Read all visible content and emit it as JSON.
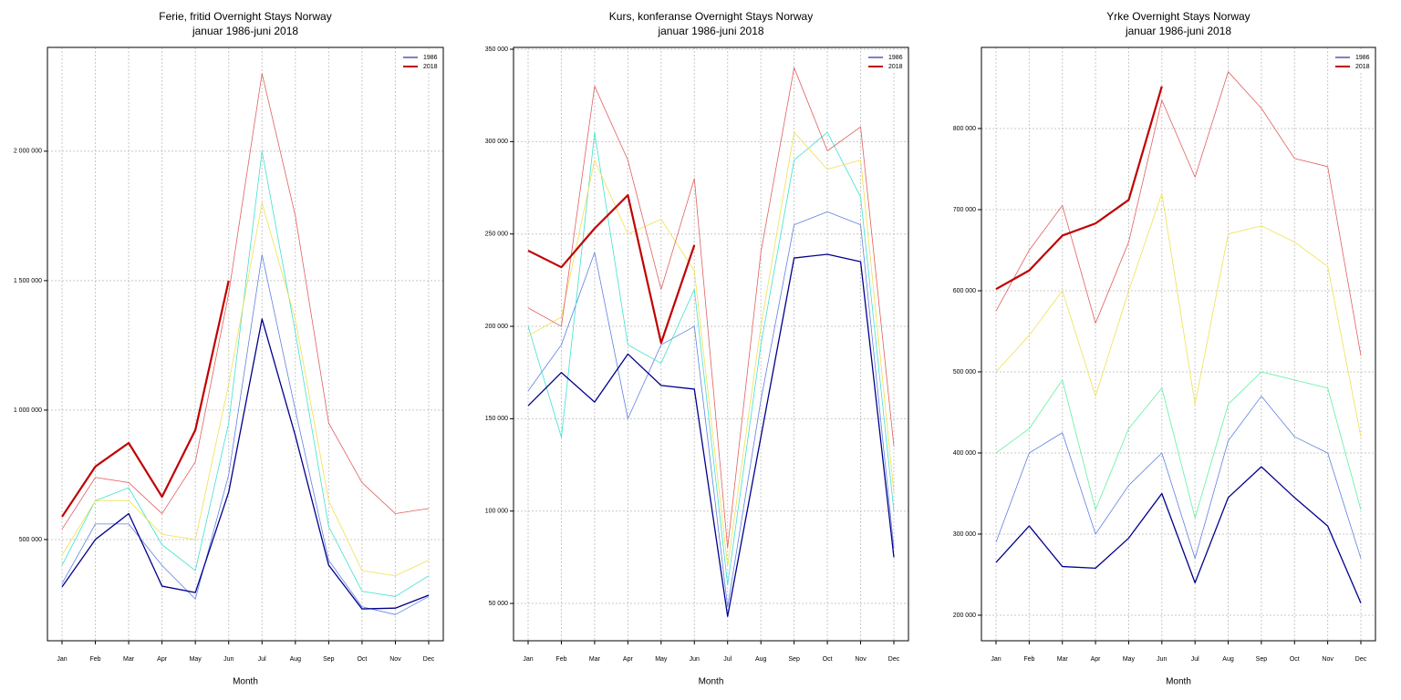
{
  "chart_data": [
    {
      "type": "line",
      "title": "Ferie, fritid Overnight Stays Norway",
      "subtitle": "januar 1986-juni 2018",
      "xlabel": "Month",
      "categories": [
        "Jan",
        "Feb",
        "Mar",
        "Apr",
        "May",
        "Jun",
        "Jul",
        "Aug",
        "Sep",
        "Oct",
        "Nov",
        "Dec"
      ],
      "ylim": [
        109000,
        2401000
      ],
      "yticks": [
        {
          "value": 500000,
          "label": "500 000"
        },
        {
          "value": 1000000,
          "label": "1 000 000"
        },
        {
          "value": 1500000,
          "label": "1 500 000"
        },
        {
          "value": 2000000,
          "label": "2 000 000"
        }
      ],
      "grid": true,
      "legend": "top-right",
      "series": [
        {
          "color": "#6080e0",
          "values": [
            330000,
            560000,
            560000,
            400000,
            270000,
            750000,
            1600000,
            1000000,
            420000,
            240000,
            210000,
            280000
          ]
        },
        {
          "color": "#40e0d0",
          "values": [
            400000,
            650000,
            700000,
            480000,
            380000,
            950000,
            2000000,
            1300000,
            550000,
            300000,
            280000,
            360000
          ]
        },
        {
          "color": "#f0e050",
          "values": [
            440000,
            650000,
            650000,
            520000,
            500000,
            1100000,
            1800000,
            1350000,
            650000,
            380000,
            360000,
            420000
          ]
        },
        {
          "color": "#e06060",
          "values": [
            540000,
            740000,
            720000,
            600000,
            800000,
            1450000,
            2300000,
            1750000,
            950000,
            720000,
            600000,
            620000
          ]
        },
        {
          "name": "1986",
          "color": "#00008b",
          "values": [
            317000,
            500000,
            600000,
            320000,
            295000,
            683000,
            1352000,
            901000,
            401000,
            232000,
            235000,
            285000
          ]
        },
        {
          "name": "2018",
          "color": "#c00000",
          "values": [
            588000,
            782000,
            873000,
            665000,
            923000,
            1500000,
            null,
            null,
            null,
            null,
            null,
            null
          ]
        }
      ]
    },
    {
      "type": "line",
      "title": "Kurs, konferanse Overnight Stays Norway",
      "subtitle": "januar 1986-juni 2018",
      "xlabel": "Month",
      "categories": [
        "Jan",
        "Feb",
        "Mar",
        "Apr",
        "May",
        "Jun",
        "Jul",
        "Aug",
        "Sep",
        "Oct",
        "Nov",
        "Dec"
      ],
      "ylim": [
        29800,
        351000
      ],
      "yticks": [
        {
          "value": 50000,
          "label": "50 000"
        },
        {
          "value": 100000,
          "label": "100 000"
        },
        {
          "value": 150000,
          "label": "150 000"
        },
        {
          "value": 200000,
          "label": "200 000"
        },
        {
          "value": 250000,
          "label": "250 000"
        },
        {
          "value": 300000,
          "label": "300 000"
        },
        {
          "value": 350000,
          "label": "350 000"
        }
      ],
      "grid": true,
      "legend": "top-right",
      "series": [
        {
          "color": "#6080e0",
          "values": [
            165000,
            190000,
            240000,
            150000,
            190000,
            200000,
            48000,
            160000,
            255000,
            262000,
            255000,
            80000
          ]
        },
        {
          "color": "#40e0d0",
          "values": [
            200000,
            140000,
            305000,
            190000,
            180000,
            220000,
            60000,
            190000,
            290000,
            305000,
            270000,
            100000
          ]
        },
        {
          "color": "#f0e050",
          "values": [
            195000,
            205000,
            290000,
            250000,
            258000,
            230000,
            70000,
            200000,
            305000,
            285000,
            290000,
            110000
          ]
        },
        {
          "color": "#e06060",
          "values": [
            210000,
            200000,
            330000,
            290000,
            220000,
            280000,
            80000,
            240000,
            340000,
            295000,
            308000,
            135000
          ]
        },
        {
          "name": "1986",
          "color": "#00008b",
          "values": [
            157000,
            175000,
            159000,
            185000,
            168000,
            166000,
            43000,
            140000,
            237000,
            239000,
            235000,
            75000
          ]
        },
        {
          "name": "2018",
          "color": "#c00000",
          "values": [
            241000,
            232000,
            253000,
            271000,
            191000,
            244000,
            null,
            null,
            null,
            null,
            null,
            null
          ]
        }
      ]
    },
    {
      "type": "line",
      "title": "Yrke Overnight Stays Norway",
      "subtitle": "januar 1986-juni 2018",
      "xlabel": "Month",
      "categories": [
        "Jan",
        "Feb",
        "Mar",
        "Apr",
        "May",
        "Jun",
        "Jul",
        "Aug",
        "Sep",
        "Oct",
        "Nov",
        "Dec"
      ],
      "ylim": [
        168500,
        900000
      ],
      "yticks": [
        {
          "value": 200000,
          "label": "200 000"
        },
        {
          "value": 300000,
          "label": "300 000"
        },
        {
          "value": 400000,
          "label": "400 000"
        },
        {
          "value": 500000,
          "label": "500 000"
        },
        {
          "value": 600000,
          "label": "600 000"
        },
        {
          "value": 700000,
          "label": "700 000"
        },
        {
          "value": 800000,
          "label": "800 000"
        }
      ],
      "grid": true,
      "legend": "top-right",
      "series": [
        {
          "color": "#6080e0",
          "values": [
            290000,
            400000,
            425000,
            300000,
            360000,
            400000,
            270000,
            415000,
            470000,
            420000,
            400000,
            270000
          ]
        },
        {
          "color": "#60f0a0",
          "values": [
            400000,
            430000,
            490000,
            330000,
            430000,
            480000,
            320000,
            460000,
            500000,
            490000,
            480000,
            330000
          ]
        },
        {
          "color": "#f0e050",
          "values": [
            500000,
            545000,
            600000,
            470000,
            600000,
            720000,
            460000,
            670000,
            680000,
            660000,
            630000,
            420000
          ]
        },
        {
          "color": "#e06060",
          "values": [
            575000,
            650000,
            705000,
            560000,
            660000,
            835000,
            740000,
            870000,
            825000,
            763000,
            753000,
            520000
          ]
        },
        {
          "name": "1986",
          "color": "#00008b",
          "values": [
            265000,
            310000,
            260000,
            258000,
            295000,
            350000,
            240000,
            345000,
            383000,
            345000,
            310000,
            215000
          ]
        },
        {
          "name": "2018",
          "color": "#c00000",
          "values": [
            602000,
            625000,
            668000,
            683000,
            712000,
            852000,
            null,
            null,
            null,
            null,
            null,
            null
          ]
        }
      ]
    }
  ]
}
